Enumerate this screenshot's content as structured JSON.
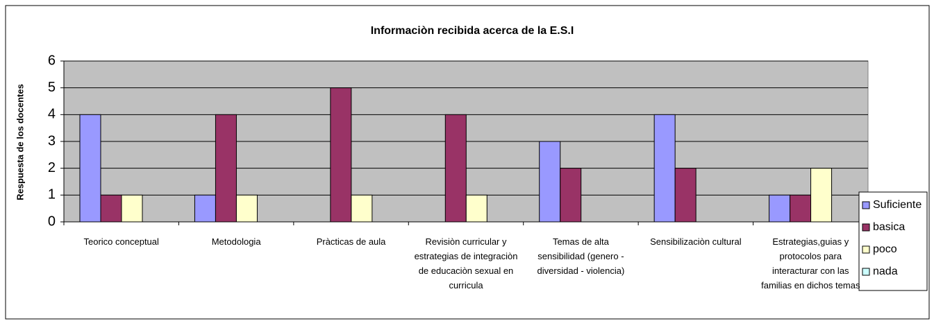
{
  "chart_data": {
    "type": "bar",
    "title": "Informaciòn recibida acerca de la E.S.I",
    "y_label": "Respuesta de los docentes",
    "categories": [
      "Teorico conceptual",
      "Metodologia",
      "Pràcticas de aula",
      "Revisiòn curricular y estrategias de integraciòn de educaciòn sexual en curricula",
      "Temas de alta sensibilidad (genero - diversidad - violencia)",
      "Sensibilizaciòn cultural",
      "Estrategias,guias y protocolos para interacturar con las familias en dichos temas"
    ],
    "series": [
      {
        "name": "Suficiente",
        "color": "#9999ff",
        "values": [
          4,
          1,
          0,
          0,
          3,
          4,
          1
        ]
      },
      {
        "name": "basica",
        "color": "#993366",
        "values": [
          1,
          4,
          5,
          4,
          2,
          2,
          1
        ]
      },
      {
        "name": "poco",
        "color": "#ffffcc",
        "values": [
          1,
          1,
          1,
          1,
          0,
          0,
          2
        ]
      },
      {
        "name": "nada",
        "color": "#ccffff",
        "values": [
          0,
          0,
          0,
          0,
          0,
          0,
          0
        ]
      }
    ],
    "ylim": [
      0,
      6
    ],
    "yticks": [
      0,
      1,
      2,
      3,
      4,
      5,
      6
    ],
    "grid": true,
    "legend": "right"
  }
}
